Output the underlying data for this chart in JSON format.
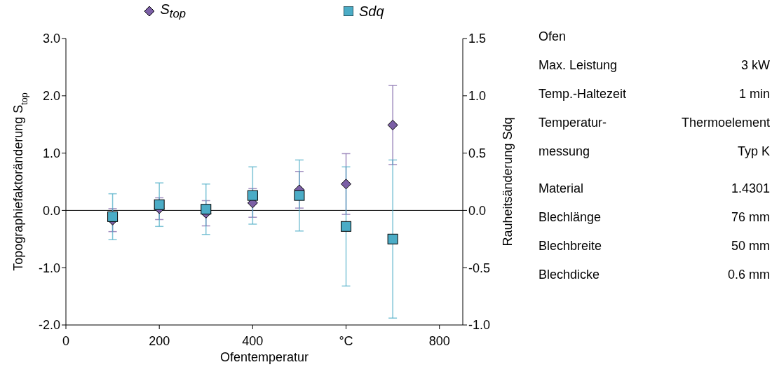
{
  "chart_data": {
    "type": "scatter",
    "xlabel": "Ofentemperatur",
    "ylabel": "Topographiefaktoränderung S$_{top}$",
    "y2label": "Rauheitsänderung Sdq",
    "x": [
      100,
      200,
      300,
      400,
      500,
      600,
      700
    ],
    "series": [
      {
        "name": "S$_{top}$",
        "color": "#7b5fa5",
        "marker": "diamond",
        "values": [
          -0.17,
          0.03,
          -0.05,
          0.13,
          0.36,
          0.46,
          1.49
        ],
        "errors": [
          0.2,
          0.19,
          0.22,
          0.25,
          0.32,
          0.53,
          0.69
        ]
      },
      {
        "name": "Sdq",
        "color": "#4bacc6",
        "marker": "square",
        "axis": "y2",
        "values": [
          -0.055,
          0.05,
          0.01,
          0.13,
          0.13,
          -0.14,
          -0.25
        ],
        "errors": [
          0.2,
          0.19,
          0.22,
          0.25,
          0.31,
          0.52,
          0.69
        ]
      }
    ],
    "xlim": [
      0,
      850
    ],
    "xticks": [
      0,
      200,
      400,
      {
        "value": 600,
        "label": "°C"
      },
      800
    ],
    "ylim": [
      -2,
      3
    ],
    "yticks": [
      {
        "value": -2,
        "label": "-2.0"
      },
      {
        "value": -1,
        "label": "-1.0"
      },
      {
        "value": 0,
        "label": "0.0"
      },
      {
        "value": 1,
        "label": "1.0"
      },
      {
        "value": 2,
        "label": "2.0"
      },
      {
        "value": 3,
        "label": "3.0"
      }
    ],
    "y2lim": [
      -1,
      1.5
    ],
    "y2ticks": [
      {
        "value": -1,
        "label": "-1.0"
      },
      {
        "value": -0.5,
        "label": "-0.5"
      },
      {
        "value": 0,
        "label": "0.0"
      },
      {
        "value": 0.5,
        "label": "0.5"
      },
      {
        "value": 1,
        "label": "1.0"
      },
      {
        "value": 1.5,
        "label": "1.5"
      }
    ],
    "ref_lines": [
      {
        "axis": "y",
        "value": 0
      }
    ],
    "grid": false,
    "legend": "top",
    "annotations": [
      "Ofen",
      "Max. Leistung\t3 kW",
      "Temp.-Haltezeit\t1 min",
      "Temperatur-\tThermoelement",
      "messung\tTyp K",
      "Material\t1.4301",
      "Blechlänge\t76 mm",
      "Blechbreite\t50 mm",
      "Blechdicke\t0.6 mm"
    ]
  }
}
